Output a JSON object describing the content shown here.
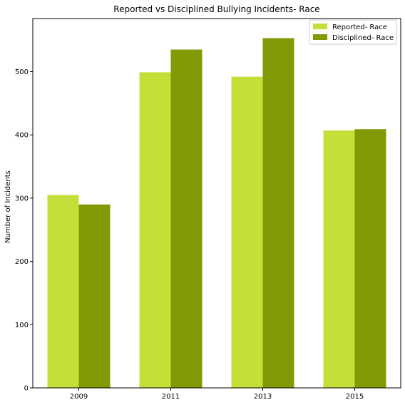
{
  "chart_data": {
    "type": "bar",
    "title": "Reported vs Disciplined Bullying Incidents- Race",
    "xlabel": "",
    "ylabel": "Number of Incidents",
    "categories": [
      "2009",
      "2011",
      "2013",
      "2015"
    ],
    "series": [
      {
        "name": "Reported- Race",
        "color": "#c4df37",
        "values": [
          305,
          499,
          492,
          407
        ]
      },
      {
        "name": "Disciplined- Race",
        "color": "#839a06",
        "values": [
          290,
          535,
          553,
          409
        ]
      }
    ],
    "ylim": [
      0,
      584
    ],
    "yticks": [
      0,
      100,
      200,
      300,
      400,
      500
    ],
    "grid": false,
    "legend_position": "top-right"
  }
}
